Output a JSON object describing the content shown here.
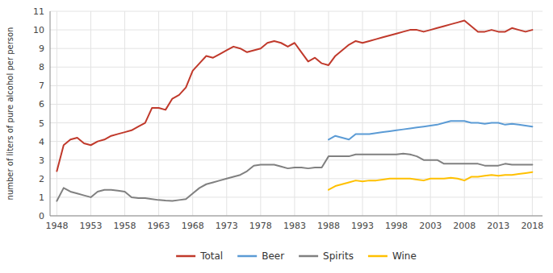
{
  "chart_data": {
    "type": "line",
    "y_label": "number of liters of pure alcohol per person",
    "x": [
      1948,
      1949,
      1950,
      1951,
      1952,
      1953,
      1954,
      1955,
      1956,
      1957,
      1958,
      1959,
      1960,
      1961,
      1962,
      1963,
      1964,
      1965,
      1966,
      1967,
      1968,
      1969,
      1970,
      1971,
      1972,
      1973,
      1974,
      1975,
      1976,
      1977,
      1978,
      1979,
      1980,
      1981,
      1982,
      1983,
      1984,
      1985,
      1986,
      1987,
      1988,
      1989,
      1990,
      1991,
      1992,
      1993,
      1994,
      1995,
      1996,
      1997,
      1998,
      1999,
      2000,
      2001,
      2002,
      2003,
      2004,
      2005,
      2006,
      2007,
      2008,
      2009,
      2010,
      2011,
      2012,
      2013,
      2014,
      2015,
      2016,
      2017,
      2018
    ],
    "series": [
      {
        "name": "Total",
        "color": "#c0392b",
        "values": [
          2.4,
          3.8,
          4.1,
          4.2,
          3.9,
          3.8,
          4.0,
          4.1,
          4.3,
          4.4,
          4.5,
          4.6,
          4.8,
          5.0,
          5.8,
          5.8,
          5.7,
          6.3,
          6.5,
          6.9,
          7.8,
          8.2,
          8.6,
          8.5,
          8.7,
          8.9,
          9.1,
          9.0,
          8.8,
          8.9,
          9.0,
          9.3,
          9.4,
          9.3,
          9.1,
          9.3,
          8.8,
          8.3,
          8.5,
          8.2,
          8.1,
          8.6,
          8.9,
          9.2,
          9.4,
          9.3,
          9.4,
          9.5,
          9.6,
          9.7,
          9.8,
          9.9,
          10.0,
          10.0,
          9.9,
          10.0,
          10.1,
          10.2,
          10.3,
          10.4,
          10.5,
          10.2,
          9.9,
          9.9,
          10.0,
          9.9,
          9.9,
          10.1,
          10.0,
          9.9,
          10.0
        ]
      },
      {
        "name": "Beer",
        "color": "#5b9bd5",
        "values": [
          null,
          null,
          null,
          null,
          null,
          null,
          null,
          null,
          null,
          null,
          null,
          null,
          null,
          null,
          null,
          null,
          null,
          null,
          null,
          null,
          null,
          null,
          null,
          null,
          null,
          null,
          null,
          null,
          null,
          null,
          null,
          null,
          null,
          null,
          null,
          null,
          null,
          null,
          null,
          null,
          4.1,
          4.3,
          4.2,
          4.1,
          4.4,
          4.4,
          4.4,
          4.45,
          4.5,
          4.55,
          4.6,
          4.65,
          4.7,
          4.75,
          4.8,
          4.85,
          4.9,
          5.0,
          5.1,
          5.1,
          5.1,
          5.0,
          5.0,
          4.95,
          5.0,
          5.0,
          4.9,
          4.95,
          4.9,
          4.85,
          4.8
        ]
      },
      {
        "name": "Spirits",
        "color": "#808080",
        "values": [
          0.8,
          1.5,
          1.3,
          1.2,
          1.1,
          1.0,
          1.3,
          1.4,
          1.4,
          1.35,
          1.3,
          1.0,
          0.95,
          0.95,
          0.9,
          0.85,
          0.82,
          0.8,
          0.85,
          0.9,
          1.2,
          1.5,
          1.7,
          1.8,
          1.9,
          2.0,
          2.1,
          2.2,
          2.4,
          2.7,
          2.75,
          2.75,
          2.75,
          2.65,
          2.55,
          2.6,
          2.6,
          2.55,
          2.6,
          2.6,
          3.2,
          3.2,
          3.2,
          3.2,
          3.3,
          3.3,
          3.3,
          3.3,
          3.3,
          3.3,
          3.3,
          3.35,
          3.3,
          3.2,
          3.0,
          3.0,
          3.0,
          2.8,
          2.8,
          2.8,
          2.8,
          2.8,
          2.8,
          2.7,
          2.7,
          2.7,
          2.8,
          2.75,
          2.75,
          2.75,
          2.75
        ]
      },
      {
        "name": "Wine",
        "color": "#ffc000",
        "values": [
          null,
          null,
          null,
          null,
          null,
          null,
          null,
          null,
          null,
          null,
          null,
          null,
          null,
          null,
          null,
          null,
          null,
          null,
          null,
          null,
          null,
          null,
          null,
          null,
          null,
          null,
          null,
          null,
          null,
          null,
          null,
          null,
          null,
          null,
          null,
          null,
          null,
          null,
          null,
          null,
          1.4,
          1.6,
          1.7,
          1.8,
          1.9,
          1.85,
          1.9,
          1.9,
          1.95,
          2.0,
          2.0,
          2.0,
          2.0,
          1.95,
          1.9,
          2.0,
          2.0,
          2.0,
          2.05,
          2.0,
          1.9,
          2.1,
          2.1,
          2.15,
          2.2,
          2.15,
          2.2,
          2.2,
          2.25,
          2.3,
          2.35
        ]
      }
    ],
    "xlim": [
      1947,
      2019.5
    ],
    "xticks": [
      1948,
      1953,
      1958,
      1963,
      1968,
      1973,
      1978,
      1983,
      1988,
      1993,
      1998,
      2003,
      2008,
      2013,
      2018
    ],
    "ylim": [
      0,
      11
    ],
    "yticks": [
      0,
      1,
      2,
      3,
      4,
      5,
      6,
      7,
      8,
      9,
      10,
      11
    ],
    "grid": true,
    "legend": "bottom"
  }
}
